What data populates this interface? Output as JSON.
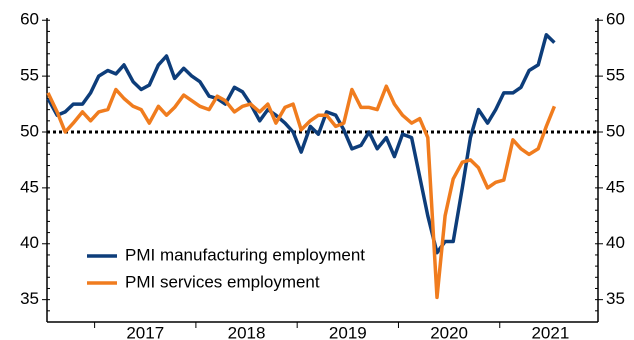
{
  "chart_data": {
    "type": "line",
    "x": [
      2016.54,
      2016.63,
      2016.71,
      2016.79,
      2016.88,
      2016.96,
      2017.04,
      2017.13,
      2017.21,
      2017.29,
      2017.38,
      2017.46,
      2017.54,
      2017.63,
      2017.71,
      2017.79,
      2017.88,
      2017.96,
      2018.04,
      2018.13,
      2018.21,
      2018.29,
      2018.38,
      2018.46,
      2018.54,
      2018.63,
      2018.71,
      2018.79,
      2018.88,
      2018.96,
      2019.04,
      2019.13,
      2019.21,
      2019.29,
      2019.38,
      2019.46,
      2019.54,
      2019.63,
      2019.71,
      2019.79,
      2019.88,
      2019.96,
      2020.04,
      2020.13,
      2020.21,
      2020.29,
      2020.38,
      2020.46,
      2020.54,
      2020.63,
      2020.71,
      2020.79,
      2020.88,
      2020.96,
      2021.04,
      2021.13,
      2021.21,
      2021.29,
      2021.38,
      2021.46,
      2021.54
    ],
    "series": [
      {
        "name": "PMI manufacturing employment",
        "color": "#0d3d7a",
        "values": [
          53,
          51.5,
          51.8,
          52.5,
          52.5,
          53.5,
          55,
          55.5,
          55.2,
          56,
          54.5,
          53.8,
          54.2,
          56,
          56.8,
          54.8,
          55.7,
          55,
          54.5,
          53.2,
          53,
          52.5,
          54,
          53.6,
          52.5,
          51,
          52,
          51.5,
          50.8,
          50,
          48.2,
          50.5,
          49.8,
          51.8,
          51.5,
          50.2,
          48.5,
          48.8,
          50,
          48.5,
          49.5,
          47.8,
          49.8,
          49.5,
          46,
          42.5,
          39.2,
          40.2,
          40.2,
          45,
          49.5,
          52,
          50.8,
          52,
          53.5,
          53.5,
          54,
          55.5,
          56,
          58.7,
          58
        ]
      },
      {
        "name": "PMI services employment",
        "color": "#f07c1e",
        "values": [
          53.5,
          51.8,
          50,
          50.8,
          51.8,
          51,
          51.8,
          52,
          53.8,
          53,
          52.3,
          52,
          50.8,
          52.3,
          51.5,
          52.2,
          53.3,
          52.8,
          52.3,
          52,
          53.2,
          52.8,
          51.8,
          52.3,
          52.5,
          51.8,
          52.5,
          50.8,
          52.2,
          52.5,
          50.2,
          51,
          51.5,
          51.5,
          50.5,
          50.8,
          53.8,
          52.2,
          52.2,
          52,
          54.1,
          52.5,
          51.5,
          50.8,
          51.2,
          49.5,
          35.2,
          42.5,
          45.8,
          47.3,
          47.5,
          46.8,
          45,
          45.5,
          45.7,
          49.3,
          48.5,
          48,
          48.5,
          50.5,
          52.3
        ]
      }
    ],
    "xlim": [
      2016.53,
      2021.97
    ],
    "xticks": [
      {
        "value": 2017.5,
        "label": "2017"
      },
      {
        "value": 2018.5,
        "label": "2018"
      },
      {
        "value": 2019.5,
        "label": "2019"
      },
      {
        "value": 2020.5,
        "label": "2020"
      },
      {
        "value": 2021.5,
        "label": "2021"
      }
    ],
    "ylim": [
      33,
      60.2
    ],
    "yticks": [
      35,
      40,
      45,
      50,
      55,
      60
    ],
    "reference_line": 50,
    "legend": "lower left"
  }
}
